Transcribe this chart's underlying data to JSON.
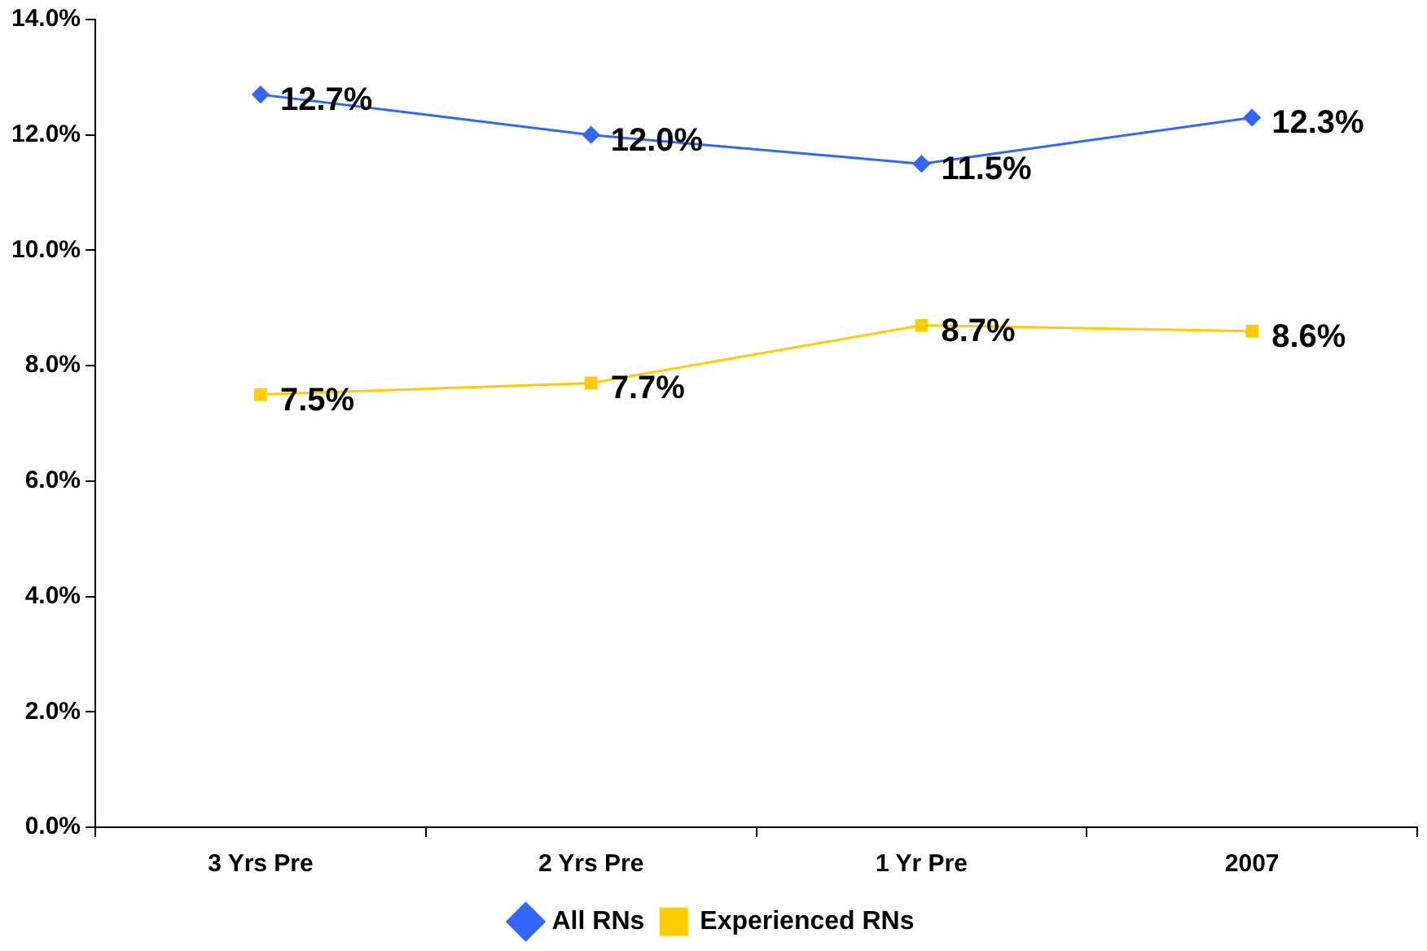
{
  "chart_data": {
    "type": "line",
    "categories": [
      "3 Yrs Pre",
      "2 Yrs Pre",
      "1 Yr Pre",
      "2007"
    ],
    "series": [
      {
        "name": "All RNs",
        "color": "#3366ff",
        "marker": "diamond",
        "values": [
          12.7,
          12.0,
          11.5,
          12.3
        ],
        "value_labels": [
          "12.7%",
          "12.0%",
          "11.5%",
          "12.3%"
        ]
      },
      {
        "name": "Experienced RNs",
        "color": "#ffcc00",
        "marker": "square",
        "values": [
          7.5,
          7.7,
          8.7,
          8.6
        ],
        "value_labels": [
          "7.5%",
          "7.7%",
          "8.7%",
          "8.6%"
        ]
      }
    ],
    "ylim": [
      0,
      14
    ],
    "yticks": [
      {
        "value": 0,
        "label": "0.0%"
      },
      {
        "value": 2,
        "label": "2.0%"
      },
      {
        "value": 4,
        "label": "4.0%"
      },
      {
        "value": 6,
        "label": "6.0%"
      },
      {
        "value": 8,
        "label": "8.0%"
      },
      {
        "value": 10,
        "label": "10.0%"
      },
      {
        "value": 12,
        "label": "12.0%"
      },
      {
        "value": 14,
        "label": "14.0%"
      }
    ],
    "legend": "bottom",
    "grid": false,
    "line_style": "solid"
  }
}
